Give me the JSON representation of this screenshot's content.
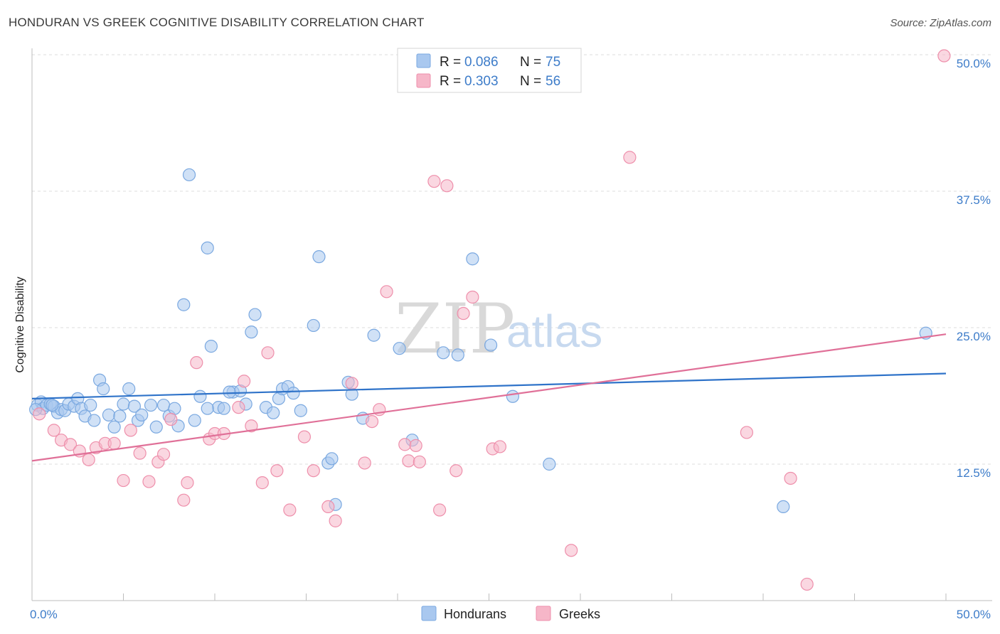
{
  "header": {
    "title": "HONDURAN VS GREEK COGNITIVE DISABILITY CORRELATION CHART",
    "source": "Source: ZipAtlas.com"
  },
  "watermark": {
    "zip": "ZIP",
    "atlas": "atlas"
  },
  "legend": {
    "rows": [
      {
        "r_label": "R = ",
        "r_value": "0.086",
        "n_label": "N = ",
        "n_value": "75",
        "color": "#a9c8ef"
      },
      {
        "r_label": "R = ",
        "r_value": "0.303",
        "n_label": "N = ",
        "n_value": "56",
        "color": "#f6b6c8"
      }
    ]
  },
  "bottom_legend": {
    "hondurans": "Hondurans",
    "greeks": "Greeks"
  },
  "colors": {
    "blue_fill": "#a9c8ef",
    "blue_stroke": "#7aa8e0",
    "blue_line": "#2f73c9",
    "pink_fill": "#f6b6c8",
    "pink_stroke": "#ee8fab",
    "pink_line": "#e07098",
    "accent_text": "#3d7cc9"
  },
  "chart_data": {
    "type": "scatter",
    "xlabel": "",
    "ylabel": "Cognitive Disability",
    "xlim": [
      0,
      50
    ],
    "ylim": [
      0,
      50
    ],
    "x_tick_labels": [
      "0.0%",
      "50.0%"
    ],
    "y_ticks": [
      12.5,
      25.0,
      37.5,
      50.0
    ],
    "y_tick_labels": [
      "12.5%",
      "25.0%",
      "37.5%",
      "50.0%"
    ],
    "grid": true,
    "legend_position": "top-center",
    "series": [
      {
        "name": "Hondurans",
        "trend": {
          "x": [
            0,
            50
          ],
          "y": [
            18.5,
            20.8
          ]
        },
        "points": [
          [
            0.3,
            17.9
          ],
          [
            0.5,
            18.2
          ],
          [
            0.6,
            17.6
          ],
          [
            0.8,
            17.9
          ],
          [
            1.0,
            18.0
          ],
          [
            1.2,
            17.8
          ],
          [
            1.4,
            17.2
          ],
          [
            1.6,
            17.5
          ],
          [
            1.8,
            17.4
          ],
          [
            2.0,
            18.0
          ],
          [
            2.3,
            17.8
          ],
          [
            2.5,
            18.5
          ],
          [
            2.7,
            17.6
          ],
          [
            2.9,
            16.9
          ],
          [
            3.2,
            17.9
          ],
          [
            3.4,
            16.5
          ],
          [
            3.7,
            20.2
          ],
          [
            3.9,
            19.4
          ],
          [
            4.2,
            17.0
          ],
          [
            4.5,
            15.9
          ],
          [
            4.8,
            16.9
          ],
          [
            5.0,
            18.0
          ],
          [
            5.3,
            19.4
          ],
          [
            5.6,
            17.8
          ],
          [
            5.8,
            16.5
          ],
          [
            6.0,
            17.0
          ],
          [
            6.5,
            17.9
          ],
          [
            6.8,
            15.9
          ],
          [
            7.2,
            17.9
          ],
          [
            7.5,
            16.9
          ],
          [
            7.8,
            17.6
          ],
          [
            8.0,
            16.0
          ],
          [
            8.3,
            27.1
          ],
          [
            8.6,
            39.0
          ],
          [
            8.9,
            16.5
          ],
          [
            9.2,
            18.7
          ],
          [
            9.6,
            32.3
          ],
          [
            9.8,
            23.3
          ],
          [
            10.2,
            17.7
          ],
          [
            10.5,
            17.6
          ],
          [
            11.0,
            19.1
          ],
          [
            11.4,
            19.2
          ],
          [
            11.7,
            18.0
          ],
          [
            12.0,
            24.6
          ],
          [
            12.2,
            26.2
          ],
          [
            12.8,
            17.7
          ],
          [
            13.2,
            17.2
          ],
          [
            13.5,
            18.5
          ],
          [
            13.7,
            19.4
          ],
          [
            14.0,
            19.6
          ],
          [
            14.3,
            19.0
          ],
          [
            14.7,
            17.4
          ],
          [
            15.4,
            25.2
          ],
          [
            15.7,
            31.5
          ],
          [
            16.2,
            12.6
          ],
          [
            16.4,
            13.0
          ],
          [
            16.6,
            8.8
          ],
          [
            17.3,
            20.0
          ],
          [
            17.5,
            18.9
          ],
          [
            18.1,
            16.7
          ],
          [
            18.7,
            24.3
          ],
          [
            20.1,
            23.1
          ],
          [
            20.8,
            14.7
          ],
          [
            22.5,
            22.7
          ],
          [
            24.1,
            31.3
          ],
          [
            25.1,
            23.4
          ],
          [
            26.3,
            18.7
          ],
          [
            28.3,
            12.5
          ],
          [
            41.1,
            8.6
          ],
          [
            48.9,
            24.5
          ],
          [
            23.3,
            22.5
          ],
          [
            10.8,
            19.1
          ],
          [
            9.6,
            17.6
          ],
          [
            0.2,
            17.5
          ],
          [
            1.1,
            17.9
          ]
        ]
      },
      {
        "name": "Greeks",
        "trend": {
          "x": [
            0,
            50
          ],
          "y": [
            12.8,
            24.4
          ]
        },
        "points": [
          [
            0.4,
            17.1
          ],
          [
            1.2,
            15.6
          ],
          [
            1.6,
            14.7
          ],
          [
            2.1,
            14.3
          ],
          [
            2.6,
            13.7
          ],
          [
            3.1,
            12.9
          ],
          [
            3.5,
            14.0
          ],
          [
            4.0,
            14.4
          ],
          [
            4.5,
            14.4
          ],
          [
            5.0,
            11.0
          ],
          [
            5.4,
            15.6
          ],
          [
            5.9,
            13.5
          ],
          [
            6.4,
            10.9
          ],
          [
            6.9,
            12.7
          ],
          [
            7.2,
            13.4
          ],
          [
            7.6,
            16.6
          ],
          [
            8.3,
            9.2
          ],
          [
            8.5,
            10.8
          ],
          [
            9.0,
            21.8
          ],
          [
            9.7,
            14.8
          ],
          [
            10.0,
            15.3
          ],
          [
            10.5,
            15.3
          ],
          [
            11.3,
            17.7
          ],
          [
            11.6,
            20.1
          ],
          [
            12.0,
            16.0
          ],
          [
            12.6,
            10.8
          ],
          [
            12.9,
            22.7
          ],
          [
            13.4,
            11.9
          ],
          [
            14.1,
            8.3
          ],
          [
            14.9,
            15.0
          ],
          [
            15.4,
            11.9
          ],
          [
            16.2,
            8.6
          ],
          [
            16.6,
            7.3
          ],
          [
            17.5,
            19.9
          ],
          [
            18.2,
            12.6
          ],
          [
            18.6,
            16.4
          ],
          [
            19.0,
            17.5
          ],
          [
            19.4,
            28.3
          ],
          [
            20.4,
            14.3
          ],
          [
            20.6,
            12.8
          ],
          [
            21.0,
            14.2
          ],
          [
            21.2,
            12.7
          ],
          [
            22.0,
            38.4
          ],
          [
            22.3,
            8.3
          ],
          [
            22.7,
            38.0
          ],
          [
            23.2,
            11.9
          ],
          [
            23.6,
            26.3
          ],
          [
            24.1,
            27.8
          ],
          [
            25.2,
            13.9
          ],
          [
            25.6,
            14.1
          ],
          [
            29.5,
            4.6
          ],
          [
            32.7,
            40.6
          ],
          [
            39.1,
            15.4
          ],
          [
            41.5,
            11.2
          ],
          [
            42.4,
            1.5
          ],
          [
            49.9,
            49.9
          ]
        ]
      }
    ]
  }
}
